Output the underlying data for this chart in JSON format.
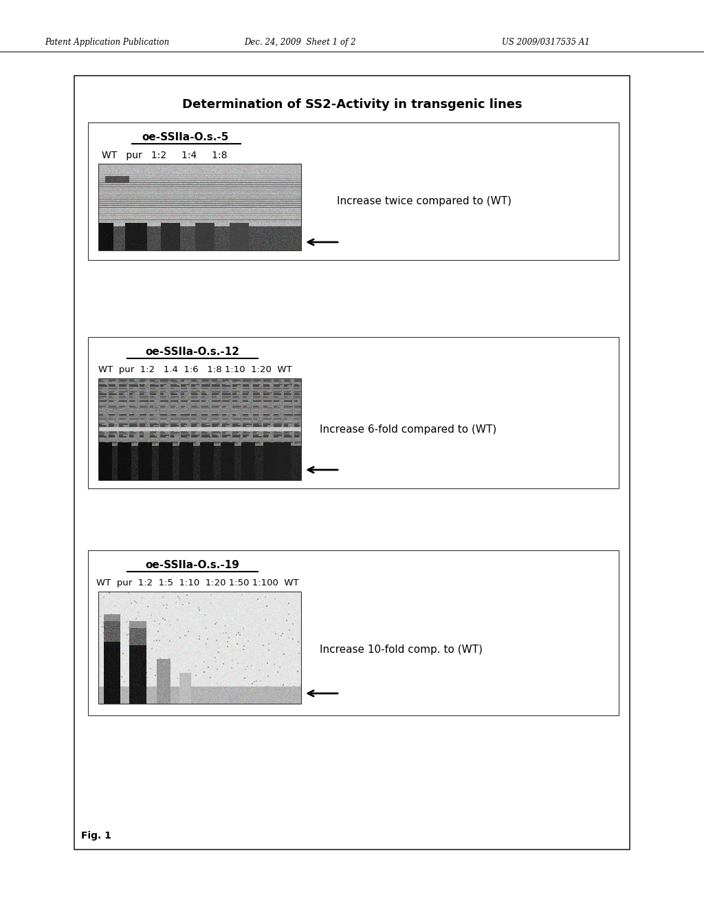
{
  "page_header_left": "Patent Application Publication",
  "page_header_mid": "Dec. 24, 2009  Sheet 1 of 2",
  "page_header_right": "US 2009/0317535 A1",
  "main_title": "Determination of SS2-Activity in transgenic lines",
  "panel1_subtitle": "oe-SSIIa-O.s.-5",
  "panel1_lanes": "WT   pur   1:2     1:4     1:8",
  "panel1_annotation": "Increase twice compared to (WT)",
  "panel2_subtitle": "oe-SSIIa-O.s.-12",
  "panel2_lanes": "WT  pur  1:2   1.4  1:6   1:8 1:10  1:20  WT",
  "panel2_annotation": "Increase 6-fold compared to (WT)",
  "panel3_subtitle": "oe-SSIIa-O.s.-19",
  "panel3_lanes": "WT  pur  1:2  1:5  1:10  1:20 1:50 1:100  WT",
  "panel3_annotation": "Increase 10-fold comp. to (WT)",
  "fig_label": "Fig. 1",
  "bg": "#ffffff"
}
